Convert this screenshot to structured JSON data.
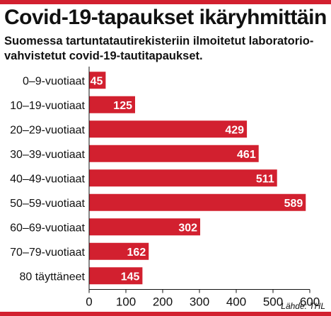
{
  "title": "Covid-19-tapaukset ikäryhmittäin",
  "subtitle": "Suomessa tartuntatautirekisteriin ilmoitetut laboratorio-vahvistetut covid-19-tautitapaukset.",
  "source": "Lähde: THL",
  "colors": {
    "bar": "#d2202f",
    "accent": "#d2202f",
    "text": "#111111",
    "grid": "#999999"
  },
  "chart_data": {
    "type": "bar",
    "orientation": "horizontal",
    "categories": [
      "0–9-vuotiaat",
      "10–19-vuotiaat",
      "20–29-vuotiaat",
      "30–39-vuotiaat",
      "40–49-vuotiaat",
      "50–59-vuotiaat",
      "60–69-vuotiaat",
      "70–79-vuotiaat",
      "80 täyttäneet"
    ],
    "values": [
      45,
      125,
      429,
      461,
      511,
      589,
      302,
      162,
      145
    ],
    "xlim": [
      0,
      600
    ],
    "xticks": [
      "0",
      "100",
      "200",
      "300",
      "400",
      "500",
      "600"
    ],
    "grid": false,
    "data_labels": true
  }
}
